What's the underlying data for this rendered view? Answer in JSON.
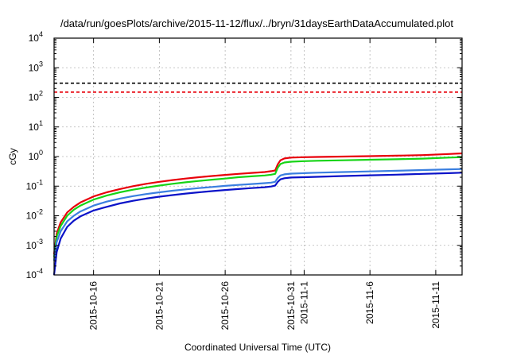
{
  "chart_data": {
    "type": "line",
    "title": "/data/run/goesPlots/archive/2015-11-12/flux/../bryn/31daysEarthDataAccumulated.plot",
    "xlabel": "Coordinated Universal Time (UTC)",
    "ylabel": "cGy",
    "y_scale": "log",
    "ylim_exp": [
      -4,
      4
    ],
    "y_ticks": [
      {
        "base": "10",
        "exp": "-4"
      },
      {
        "base": "10",
        "exp": "-3"
      },
      {
        "base": "10",
        "exp": "-2"
      },
      {
        "base": "10",
        "exp": "-1"
      },
      {
        "base": "10",
        "exp": "0"
      },
      {
        "base": "10",
        "exp": "1"
      },
      {
        "base": "10",
        "exp": "2"
      },
      {
        "base": "10",
        "exp": "3"
      },
      {
        "base": "10",
        "exp": "4"
      }
    ],
    "xlim_days": [
      0,
      31
    ],
    "x_ticks": [
      {
        "label": "2015-10-16",
        "day": 3
      },
      {
        "label": "2015-10-21",
        "day": 8
      },
      {
        "label": "2015-10-26",
        "day": 13
      },
      {
        "label": "2015-10-31",
        "day": 18
      },
      {
        "label": "2015-11-1",
        "day": 19
      },
      {
        "label": "2015-11-6",
        "day": 24
      },
      {
        "label": "2015-11-11",
        "day": 29
      }
    ],
    "grid": true,
    "thresholds": [
      {
        "value": 300,
        "color": "#000000"
      },
      {
        "value": 150,
        "color": "#e8000a"
      }
    ],
    "series": [
      {
        "color": "#e8000a",
        "x": [
          0,
          0.2,
          0.5,
          1,
          1.5,
          2,
          3,
          4,
          5,
          6,
          7,
          8,
          9,
          10,
          11,
          12,
          13,
          14,
          15,
          16,
          16.5,
          16.8,
          17,
          17.2,
          17.5,
          18,
          19,
          20,
          22,
          24,
          26,
          28,
          30,
          31
        ],
        "y": [
          0.0005,
          0.0025,
          0.006,
          0.013,
          0.02,
          0.028,
          0.045,
          0.062,
          0.08,
          0.1,
          0.12,
          0.14,
          0.16,
          0.18,
          0.2,
          0.22,
          0.24,
          0.26,
          0.28,
          0.3,
          0.32,
          0.34,
          0.55,
          0.75,
          0.86,
          0.92,
          0.95,
          0.97,
          1.0,
          1.03,
          1.07,
          1.12,
          1.22,
          1.28
        ]
      },
      {
        "color": "#16d416",
        "x": [
          0,
          0.2,
          0.5,
          1,
          1.5,
          2,
          3,
          4,
          5,
          6,
          7,
          8,
          9,
          10,
          11,
          12,
          13,
          14,
          15,
          16,
          16.5,
          16.8,
          17,
          17.2,
          17.5,
          18,
          19,
          20,
          22,
          24,
          26,
          28,
          30,
          31
        ],
        "y": [
          0.0004,
          0.002,
          0.0045,
          0.01,
          0.016,
          0.022,
          0.035,
          0.048,
          0.062,
          0.076,
          0.09,
          0.105,
          0.12,
          0.135,
          0.15,
          0.165,
          0.18,
          0.2,
          0.215,
          0.23,
          0.245,
          0.26,
          0.42,
          0.56,
          0.63,
          0.67,
          0.7,
          0.72,
          0.75,
          0.78,
          0.81,
          0.85,
          0.92,
          0.95
        ]
      },
      {
        "color": "#3a7fe0",
        "x": [
          0,
          0.2,
          0.5,
          1,
          1.5,
          2,
          3,
          4,
          5,
          6,
          7,
          8,
          9,
          10,
          11,
          12,
          13,
          14,
          15,
          16,
          16.5,
          16.8,
          17,
          17.2,
          17.5,
          18,
          19,
          20,
          22,
          24,
          26,
          28,
          30,
          31
        ],
        "y": [
          0.0003,
          0.0013,
          0.003,
          0.0065,
          0.01,
          0.014,
          0.022,
          0.03,
          0.038,
          0.046,
          0.054,
          0.062,
          0.07,
          0.078,
          0.086,
          0.094,
          0.102,
          0.11,
          0.118,
          0.126,
          0.132,
          0.14,
          0.19,
          0.23,
          0.25,
          0.265,
          0.275,
          0.285,
          0.3,
          0.315,
          0.33,
          0.35,
          0.37,
          0.38
        ]
      },
      {
        "color": "#0a12c8",
        "x": [
          0,
          0.2,
          0.5,
          1,
          1.5,
          2,
          3,
          4,
          5,
          6,
          7,
          8,
          9,
          10,
          11,
          12,
          13,
          14,
          15,
          16,
          16.5,
          16.8,
          17,
          17.2,
          17.5,
          18,
          19,
          20,
          22,
          24,
          26,
          28,
          30,
          31
        ],
        "y": [
          0.0001,
          0.0006,
          0.0017,
          0.0042,
          0.0068,
          0.0095,
          0.015,
          0.02,
          0.026,
          0.032,
          0.038,
          0.044,
          0.05,
          0.056,
          0.062,
          0.068,
          0.074,
          0.08,
          0.086,
          0.092,
          0.097,
          0.105,
          0.14,
          0.17,
          0.185,
          0.195,
          0.2,
          0.207,
          0.22,
          0.232,
          0.245,
          0.26,
          0.275,
          0.285
        ]
      }
    ]
  }
}
